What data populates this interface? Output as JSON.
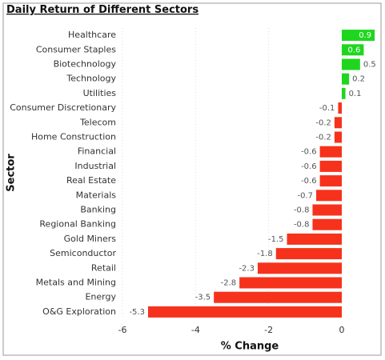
{
  "chart_data": {
    "type": "hbar",
    "title": "Daily Return of Different Sectors",
    "x_label": "% Change",
    "y_label": "Sector",
    "categories": [
      "Healthcare",
      "Consumer Staples",
      "Biotechnology",
      "Technology",
      "Utilities",
      "Consumer Discretionary",
      "Telecom",
      "Home Construction",
      "Financial",
      "Industrial",
      "Real Estate",
      "Materials",
      "Banking",
      "Regional Banking",
      "Gold Miners",
      "Semiconductor",
      "Retail",
      "Metals and Mining",
      "Energy",
      "O&G Exploration"
    ],
    "values": [
      0.9,
      0.6,
      0.5,
      0.2,
      0.1,
      -0.1,
      -0.2,
      -0.2,
      -0.6,
      -0.6,
      -0.6,
      -0.7,
      -0.8,
      -0.8,
      -1.5,
      -1.8,
      -2.3,
      -2.8,
      -3.5,
      -5.3
    ],
    "color_positive": "#1fd61f",
    "color_negative": "#f7321c",
    "xlim": [
      -6,
      1
    ],
    "xticks": [
      -6,
      -4,
      -2,
      0
    ],
    "grid": true
  }
}
